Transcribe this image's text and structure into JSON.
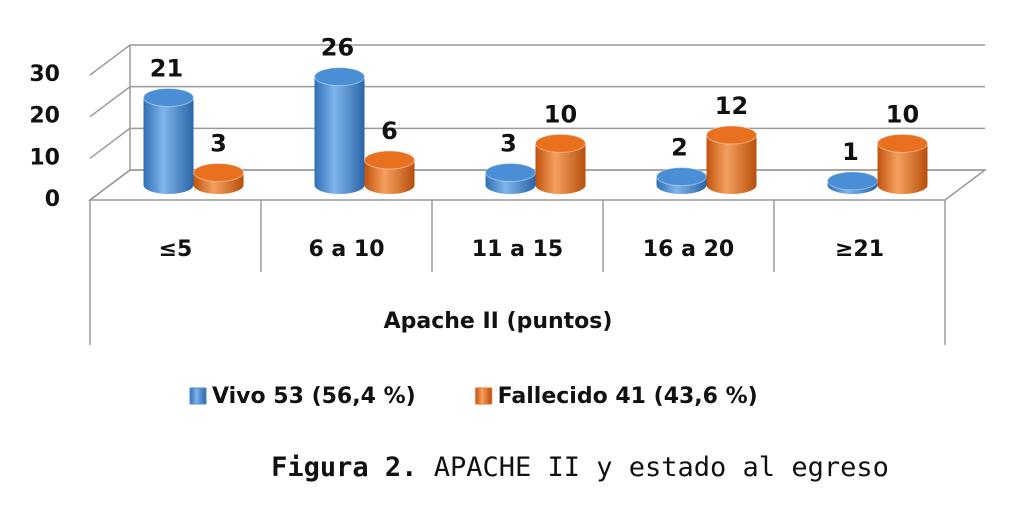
{
  "chart_data": {
    "type": "bar3d",
    "categories": [
      "≤5",
      "6 a 10",
      "11 a 15",
      "16 a 20",
      "≥21"
    ],
    "series": [
      {
        "name": "Vivo 53 (56,4 %)",
        "color": "#4a8fd6",
        "values": [
          21,
          26,
          3,
          2,
          1
        ]
      },
      {
        "name": "Fallecido 41 (43,6 %)",
        "color": "#e8701e",
        "values": [
          3,
          6,
          10,
          12,
          10
        ]
      }
    ],
    "ylim": [
      0,
      30
    ],
    "yticks": [
      0,
      10,
      20,
      30
    ],
    "grid": true,
    "x_label": "Apache II  (puntos)"
  },
  "caption": {
    "label": "Figura 2.",
    "text": "APACHE II y estado al egreso"
  }
}
